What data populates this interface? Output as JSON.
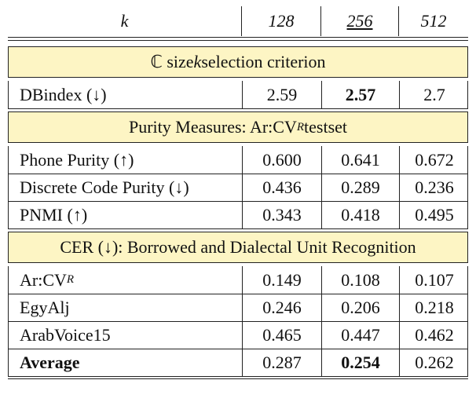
{
  "table": {
    "header": [
      {
        "italic": "k"
      },
      {
        "italic": "128"
      },
      {
        "italic": "256",
        "underline": true
      },
      {
        "italic": "512"
      }
    ],
    "sections": [
      {
        "title": [
          "ℂ size ",
          {
            "italic": "k"
          },
          " selection criterion"
        ],
        "rows": [
          [
            "DBindex (↓)",
            "2.59",
            {
              "bold": "2.57"
            },
            "2.7"
          ]
        ]
      },
      {
        "title": [
          "Purity Measures: Ar:CV",
          {
            "sub": "R"
          },
          " testset"
        ],
        "rows": [
          [
            "Phone Purity (↑)",
            "0.600",
            "0.641",
            "0.672"
          ],
          [
            "Discrete Code Purity (↓)",
            "0.436",
            "0.289",
            "0.236"
          ],
          [
            "PNMI (↑)",
            "0.343",
            "0.418",
            "0.495"
          ]
        ]
      },
      {
        "title": [
          "CER (↓): Borrowed and Dialectal Unit Recognition"
        ],
        "rows": [
          [
            [
              "Ar:CV",
              {
                "sub": "R"
              }
            ],
            "0.149",
            "0.108",
            "0.107"
          ],
          [
            "EgyAlj",
            "0.246",
            "0.206",
            "0.218"
          ],
          [
            "ArabVoice15",
            "0.465",
            "0.447",
            "0.462"
          ],
          [
            {
              "bold": "Average"
            },
            "0.287",
            {
              "bold": "0.254"
            },
            "0.262"
          ]
        ]
      }
    ]
  }
}
